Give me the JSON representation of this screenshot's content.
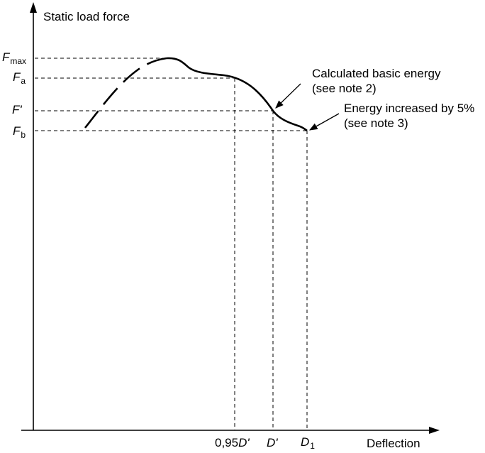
{
  "axes": {
    "y_title": "Static load force",
    "x_title": "Deflection"
  },
  "y_labels": {
    "fmax": {
      "main": "F",
      "sub": "max"
    },
    "fa": {
      "main": "F",
      "sub": "a"
    },
    "fprime": {
      "main": "F'"
    },
    "fb": {
      "main": "F",
      "sub": "b"
    }
  },
  "x_labels": {
    "d095": {
      "prefix": "0,95",
      "main": "D'"
    },
    "dprime": {
      "main": "D'"
    },
    "d1": {
      "main": "D",
      "sub": "1"
    }
  },
  "annotations": {
    "basic_energy_line1": "Calculated basic energy",
    "basic_energy_line2": "(see note 2)",
    "increased_line1": "Energy increased by 5%",
    "increased_line2": "(see note 3)"
  },
  "colors": {
    "ink": "#000000",
    "background": "#ffffff"
  }
}
